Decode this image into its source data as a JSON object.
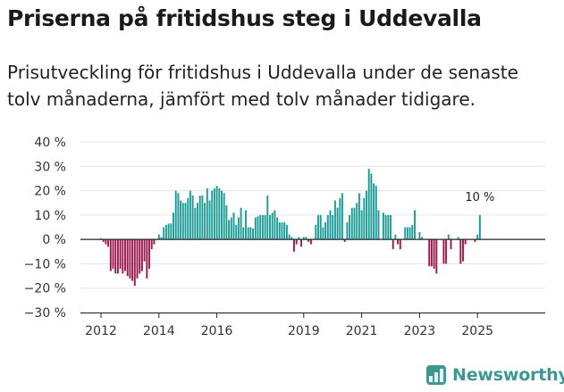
{
  "header": {
    "title": "Priserna på fritidshus steg i Uddevalla",
    "subtitle": "Prisutveckling för fritidshus i Uddevalla under de senaste tolv månaderna, jämfört med tolv månader tidigare."
  },
  "brand": {
    "name": "Newsworthy"
  },
  "colors": {
    "positive": "#1a9c96",
    "negative": "#a0164a",
    "grid": "#e3e3e3",
    "axis": "#222222"
  },
  "chart_data": {
    "type": "bar",
    "title": "Priserna på fritidshus steg i Uddevalla",
    "ylabel": "",
    "xlabel": "",
    "unit": "%",
    "ylim": [
      -30,
      40
    ],
    "yticks": [
      -30,
      -20,
      -10,
      0,
      10,
      20,
      30,
      40
    ],
    "ytick_labels": [
      "−30 %",
      "−20 %",
      "−10 %",
      "0 %",
      "10 %",
      "20 %",
      "30 %",
      "40 %"
    ],
    "xticks": [
      2012,
      2014,
      2016,
      2019,
      2021,
      2023,
      2025
    ],
    "start": "2012-01",
    "annotation": {
      "text": "10 %",
      "target": "last"
    },
    "values": [
      0.5,
      -1,
      -2,
      -3,
      -13,
      -12,
      -14,
      -14,
      -12,
      -14,
      -13,
      -15,
      -16,
      -17,
      -19,
      -16,
      -14,
      -13,
      -9,
      -16,
      -12,
      -4,
      -2,
      0,
      2,
      1,
      5,
      6,
      6.5,
      6.5,
      11,
      20,
      19,
      16,
      15,
      15,
      17,
      20,
      18,
      13,
      15,
      18,
      18,
      15,
      21,
      16,
      20,
      21,
      22,
      21,
      20,
      19,
      14,
      8,
      9,
      11,
      6,
      9,
      13,
      5,
      12,
      5,
      5,
      4.5,
      9,
      9.5,
      10,
      10,
      10,
      18,
      10,
      11,
      12,
      9,
      7,
      7,
      7,
      6,
      2,
      1,
      -5,
      -2,
      1,
      -3,
      1,
      1,
      -1,
      -2,
      0,
      6,
      10,
      10,
      5,
      7,
      10,
      12,
      10,
      16,
      13,
      17,
      19,
      -1,
      7,
      10,
      13,
      13,
      15,
      19,
      12,
      17,
      20,
      29,
      27,
      23,
      22,
      12,
      0,
      11,
      10,
      10,
      10,
      -4,
      2,
      -2,
      -4,
      0,
      5,
      5,
      5,
      6,
      12,
      0,
      3,
      1,
      0,
      0,
      -11,
      -11,
      -12,
      -14,
      0,
      0,
      -10,
      -10,
      2,
      -4,
      0,
      0,
      1,
      -10,
      -9,
      -2,
      0,
      0,
      0,
      -1,
      2,
      10
    ]
  }
}
